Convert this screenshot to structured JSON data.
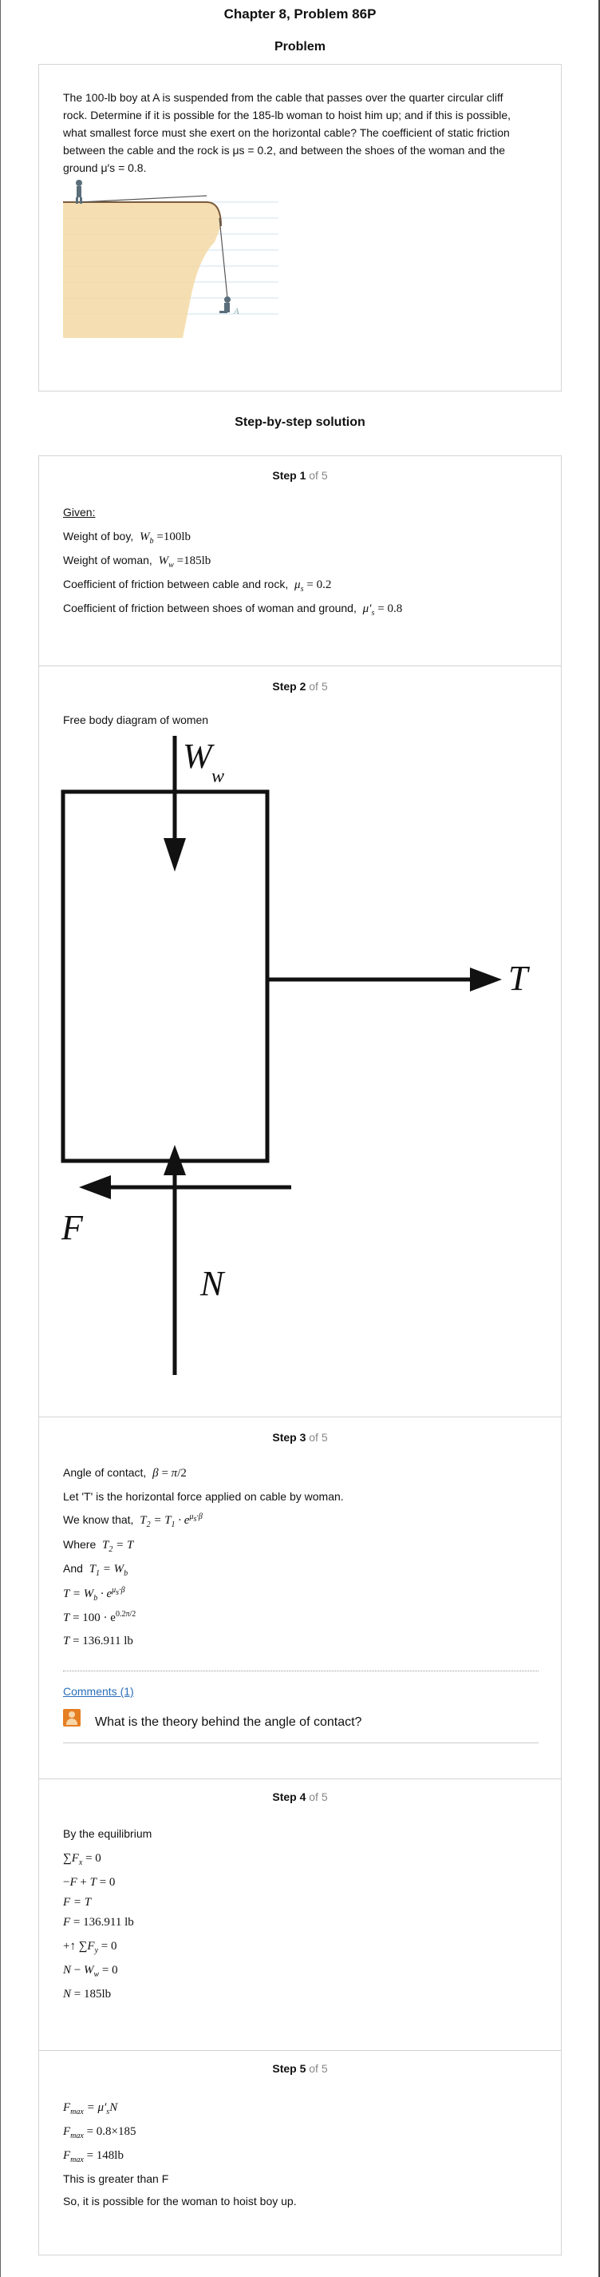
{
  "header": {
    "chapter_title": "Chapter 8, Problem 86P"
  },
  "problem": {
    "section_title": "Problem",
    "text_lines": [
      "The 100-lb boy at A is suspended from the cable that passes over the quarter circular cliff",
      "rock. Determine if it is possible for the 185-lb woman to hoist him up; and if this is possible,",
      "what smallest force must she exert on the horizontal cable? The coefficient of static friction",
      "between the cable and the rock is μs = 0.2, and between the shoes of the woman and the",
      "ground μ′s = 0.8."
    ],
    "figure_label": "A"
  },
  "solution": {
    "section_title": "Step-by-step solution"
  },
  "steps": [
    {
      "label": "Step 1",
      "of": "of 5",
      "given": "Given:",
      "lines": [
        "Weight of boy,",
        "Weight of woman,",
        "Coefficient of friction between cable and rock,",
        "Coefficient of friction between shoes of woman and ground,"
      ],
      "math": [
        "W_b = 100lb",
        "W_w = 185lb",
        "μ_s = 0.2",
        "μ′_s = 0.8"
      ]
    },
    {
      "label": "Step 2",
      "of": "of 5",
      "caption": "Free body diagram of women",
      "fbd": {
        "weight": "W",
        "weight_sub": "w",
        "tension": "T",
        "friction": "F",
        "normal": "N"
      }
    },
    {
      "label": "Step 3",
      "of": "of 5",
      "lines": [
        "Angle of contact,",
        "Let 'T' is the horizontal force applied on cable by woman.",
        "We know that,",
        "Where",
        "And"
      ],
      "math": [
        "β = π/2",
        "T₂ = T₁·e^(μ_s·β)",
        "T₂ = T",
        "T₁ = W_b",
        "T = W_b·e^(μ_s·β)",
        "T = 100·e^(0.2π/2)",
        "T = 136.911 lb"
      ],
      "comments_link": "Comments (1)",
      "comment": "What is the theory behind the angle of contact?"
    },
    {
      "label": "Step 4",
      "of": "of 5",
      "intro": "By the equilibrium",
      "math": [
        "∑F_x = 0",
        "−F + T = 0",
        "F = T",
        "F = 136.911 lb",
        "+↑ ∑F_y = 0",
        "N − W_w = 0",
        "N = 185lb"
      ]
    },
    {
      "label": "Step 5",
      "of": "of 5",
      "math": [
        "F_max = μ′_s N",
        "F_max = 0.8×185",
        "F_max = 148lb"
      ],
      "lines": [
        "This is greater than F",
        "So, it is possible for the woman to hoist boy up."
      ]
    }
  ]
}
